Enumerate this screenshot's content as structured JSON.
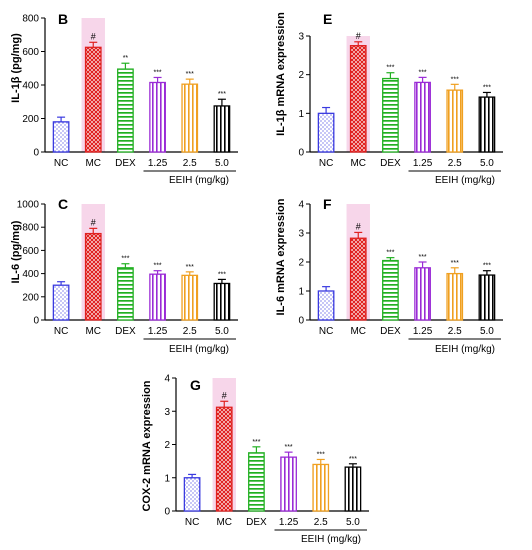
{
  "colors": {
    "NC": "#3a3ae0",
    "MC": "#e02020",
    "DEX": "#22b022",
    "EEIH_1.25": "#9a2bd6",
    "EEIH_2.5": "#f0a020",
    "EEIH_5.0": "#000000",
    "highlight": "#f7d6ea"
  },
  "chart_data": [
    {
      "type": "bar",
      "panel": "B",
      "ylabel": "IL-1β (pg/mg)",
      "xgroup_label": "EEIH (mg/kg)",
      "ylim": [
        0,
        800
      ],
      "yticks": [
        0,
        200,
        400,
        600,
        800
      ],
      "categories": [
        "NC",
        "MC",
        "DEX",
        "1.25",
        "2.5",
        "5.0"
      ],
      "values": [
        180,
        625,
        495,
        415,
        405,
        275
      ],
      "errors": [
        28,
        30,
        35,
        30,
        30,
        40
      ],
      "annotations": [
        "",
        "#",
        "**",
        "***",
        "***",
        "***"
      ]
    },
    {
      "type": "bar",
      "panel": "E",
      "ylabel": "IL-1β mRNA expression",
      "xgroup_label": "EEIH (mg/kg)",
      "ylim": [
        0,
        3
      ],
      "yticks": [
        0,
        1,
        2,
        3
      ],
      "categories": [
        "NC",
        "MC",
        "DEX",
        "1.25",
        "2.5",
        "5.0"
      ],
      "values": [
        1.0,
        2.75,
        1.9,
        1.8,
        1.6,
        1.42
      ],
      "errors": [
        0.15,
        0.1,
        0.15,
        0.13,
        0.15,
        0.12
      ],
      "annotations": [
        "",
        "#",
        "***",
        "***",
        "***",
        "***"
      ]
    },
    {
      "type": "bar",
      "panel": "C",
      "ylabel": "IL-6 (pg/mg)",
      "xgroup_label": "EEIH (mg/kg)",
      "ylim": [
        0,
        1000
      ],
      "yticks": [
        0,
        200,
        400,
        600,
        800,
        1000
      ],
      "categories": [
        "NC",
        "MC",
        "DEX",
        "1.25",
        "2.5",
        "5.0"
      ],
      "values": [
        300,
        745,
        450,
        395,
        385,
        315
      ],
      "errors": [
        30,
        45,
        35,
        30,
        30,
        35
      ],
      "annotations": [
        "",
        "#",
        "***",
        "***",
        "***",
        "***"
      ]
    },
    {
      "type": "bar",
      "panel": "F",
      "ylabel": "IL-6 mRNA expression",
      "xgroup_label": "EEIH (mg/kg)",
      "ylim": [
        0,
        4
      ],
      "yticks": [
        0,
        1,
        2,
        3,
        4
      ],
      "categories": [
        "NC",
        "MC",
        "DEX",
        "1.25",
        "2.5",
        "5.0"
      ],
      "values": [
        1.0,
        2.82,
        2.05,
        1.8,
        1.6,
        1.55
      ],
      "errors": [
        0.15,
        0.2,
        0.1,
        0.2,
        0.2,
        0.15
      ],
      "annotations": [
        "",
        "#",
        "***",
        "***",
        "***",
        "***"
      ]
    },
    {
      "type": "bar",
      "panel": "G",
      "ylabel": "COX-2 mRNA expression",
      "xgroup_label": "EEIH (mg/kg)",
      "ylim": [
        0,
        4
      ],
      "yticks": [
        0,
        1,
        2,
        3,
        4
      ],
      "categories": [
        "NC",
        "MC",
        "DEX",
        "1.25",
        "2.5",
        "5.0"
      ],
      "values": [
        1.0,
        3.12,
        1.75,
        1.62,
        1.4,
        1.32
      ],
      "errors": [
        0.1,
        0.18,
        0.18,
        0.15,
        0.15,
        0.1
      ],
      "annotations": [
        "",
        "#",
        "***",
        "***",
        "***",
        "***"
      ]
    }
  ]
}
